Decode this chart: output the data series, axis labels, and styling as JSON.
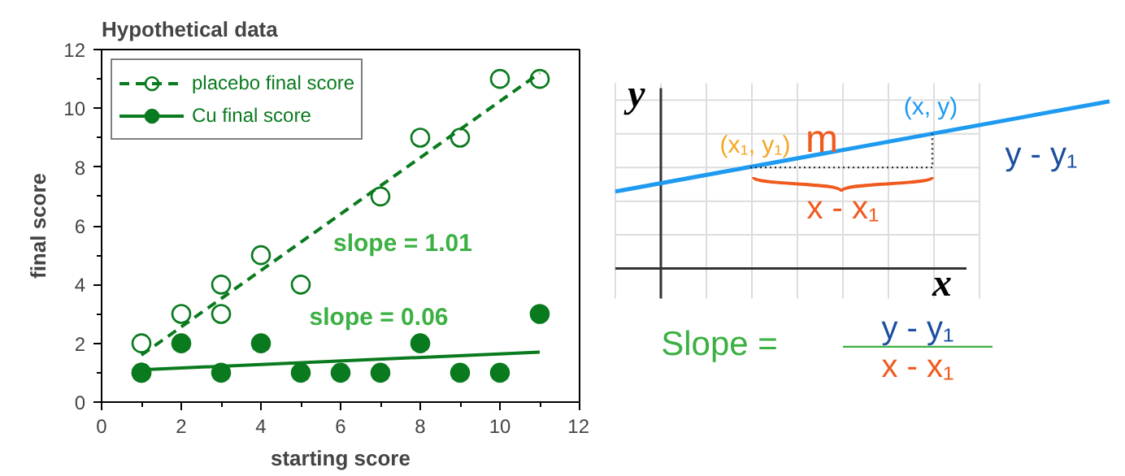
{
  "chart_data": [
    {
      "type": "scatter",
      "title": "Hypothetical data",
      "xlabel": "starting score",
      "ylabel": "final score",
      "xlim": [
        0,
        12
      ],
      "ylim": [
        0,
        12
      ],
      "xticks": [
        0,
        2,
        4,
        6,
        8,
        10,
        12
      ],
      "yticks": [
        0,
        2,
        4,
        6,
        8,
        10,
        12
      ],
      "grid": false,
      "legend": "top left",
      "marker": "circle",
      "series": [
        {
          "type": "scatter",
          "name": "placebo final score",
          "color": "#0a7a1e",
          "x": [
            1,
            1,
            2,
            3,
            3,
            4,
            5,
            7,
            8,
            9,
            10,
            11
          ],
          "values": [
            2,
            1,
            3,
            4,
            3,
            5,
            4,
            7,
            9,
            9,
            11,
            11
          ]
        },
        {
          "type": "line",
          "color": "#0a7a1e",
          "line_style": "dashed",
          "marker": "none",
          "x": [
            1,
            11
          ],
          "values": [
            1.6,
            11.2
          ]
        },
        {
          "type": "scatter",
          "name": "Cu final score",
          "color": "#0a7a1e",
          "x": [
            1,
            2,
            3,
            4,
            5,
            6,
            7,
            8,
            9,
            10,
            11
          ],
          "values": [
            1,
            2,
            1,
            2,
            1,
            1,
            1,
            2,
            1,
            1,
            3
          ]
        },
        {
          "type": "line",
          "color": "#0a7a1e",
          "line_style": "solid",
          "marker": "none",
          "x": [
            1,
            11
          ],
          "values": [
            1.1,
            1.7
          ]
        }
      ],
      "annotations": [
        "slope = 1.01",
        "slope = 0.06"
      ]
    },
    {
      "type": "other",
      "annotations": [
        "y",
        "x",
        "(x, y)",
        "(x₁, y₁)",
        "m",
        "y - y₁",
        "x - x₁",
        "Slope =",
        "y - y₁",
        "x - x₁"
      ]
    }
  ]
}
